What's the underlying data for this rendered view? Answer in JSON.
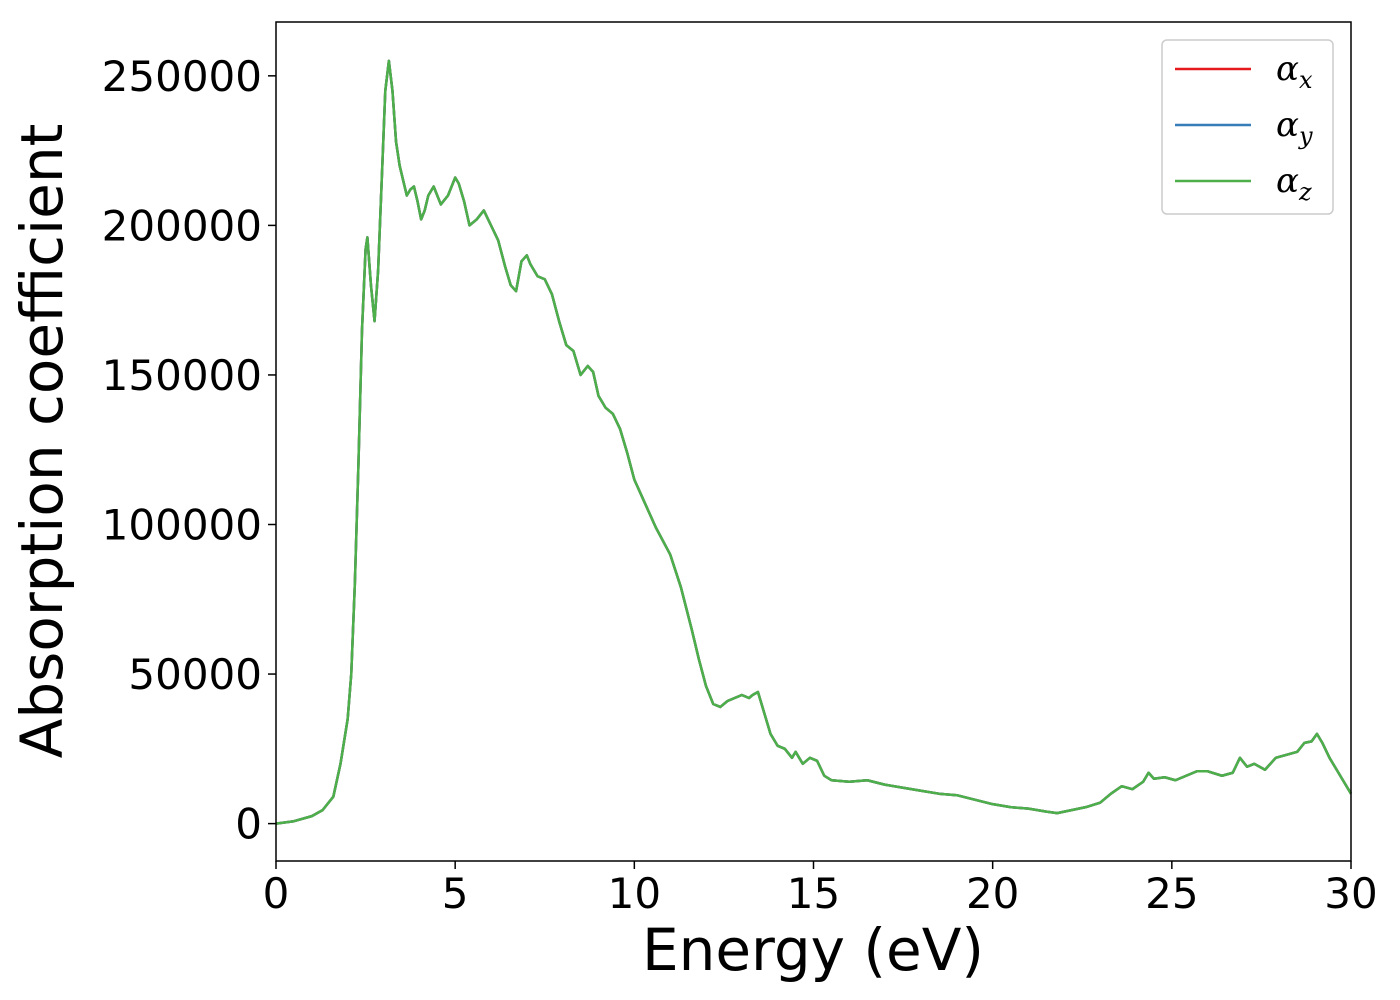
{
  "chart_data": {
    "type": "line",
    "title": "",
    "xlabel": "Energy (eV)",
    "ylabel": "Absorption coefficient",
    "xlim": [
      0,
      30
    ],
    "ylim": [
      -12500,
      268000
    ],
    "xticks": [
      0,
      5,
      10,
      15,
      20,
      25,
      30
    ],
    "yticks": [
      0,
      50000,
      100000,
      150000,
      200000,
      250000
    ],
    "xtick_labels": [
      "0",
      "5",
      "10",
      "15",
      "20",
      "25",
      "30"
    ],
    "ytick_labels": [
      "0",
      "50000",
      "100000",
      "150000",
      "200000",
      "250000"
    ],
    "grid": false,
    "legend": {
      "placement": "top-right",
      "entries": [
        {
          "symbol": "α",
          "subscript": "x"
        },
        {
          "symbol": "α",
          "subscript": "y"
        },
        {
          "symbol": "α",
          "subscript": "z"
        }
      ]
    },
    "colors": [
      "#e41a1c",
      "#377eb8",
      "#4daf4a"
    ],
    "x": [
      0,
      0.5,
      1.0,
      1.3,
      1.6,
      1.8,
      2.0,
      2.1,
      2.2,
      2.3,
      2.4,
      2.5,
      2.55,
      2.65,
      2.75,
      2.85,
      2.95,
      3.05,
      3.15,
      3.25,
      3.35,
      3.45,
      3.55,
      3.65,
      3.75,
      3.85,
      3.95,
      4.05,
      4.15,
      4.25,
      4.4,
      4.6,
      4.8,
      5.0,
      5.1,
      5.25,
      5.4,
      5.6,
      5.8,
      6.0,
      6.2,
      6.4,
      6.55,
      6.7,
      6.85,
      7.0,
      7.1,
      7.3,
      7.5,
      7.7,
      7.9,
      8.1,
      8.3,
      8.5,
      8.7,
      8.85,
      9.0,
      9.2,
      9.4,
      9.6,
      9.8,
      10.0,
      10.3,
      10.6,
      11.0,
      11.3,
      11.6,
      11.8,
      12.0,
      12.2,
      12.4,
      12.6,
      12.8,
      13.0,
      13.2,
      13.3,
      13.45,
      13.6,
      13.8,
      14.0,
      14.2,
      14.4,
      14.5,
      14.7,
      14.9,
      15.1,
      15.3,
      15.5,
      16.0,
      16.5,
      17.0,
      17.5,
      18.0,
      18.5,
      19.0,
      19.5,
      20.0,
      20.5,
      21.0,
      21.5,
      21.8,
      22.2,
      22.6,
      23.0,
      23.3,
      23.6,
      23.9,
      24.2,
      24.35,
      24.5,
      24.8,
      25.1,
      25.4,
      25.7,
      26.0,
      26.4,
      26.7,
      26.9,
      27.1,
      27.3,
      27.6,
      27.9,
      28.2,
      28.5,
      28.7,
      28.9,
      29.05,
      29.2,
      29.4,
      29.6,
      29.8,
      30.0
    ],
    "series": [
      {
        "values": [
          0,
          800,
          2500,
          4500,
          9000,
          20000,
          35000,
          50000,
          80000,
          120000,
          165000,
          192000,
          196000,
          180000,
          168000,
          185000,
          215000,
          245000,
          255000,
          245000,
          228000,
          220000,
          215000,
          210000,
          212000,
          213000,
          208000,
          202000,
          205000,
          210000,
          213000,
          207000,
          210000,
          216000,
          214000,
          208000,
          200000,
          202000,
          205000,
          200000,
          195000,
          186000,
          180000,
          178000,
          188000,
          190000,
          187000,
          183000,
          182000,
          177000,
          168000,
          160000,
          158000,
          150000,
          153000,
          151000,
          143000,
          139000,
          137000,
          132000,
          124000,
          115000,
          107000,
          99000,
          90000,
          79000,
          65000,
          55000,
          46000,
          40000,
          39000,
          41000,
          42000,
          43000,
          42000,
          43000,
          44000,
          38000,
          30000,
          26000,
          25000,
          22000,
          24000,
          20000,
          22000,
          21000,
          16000,
          14500,
          14000,
          14500,
          13000,
          12000,
          11000,
          10000,
          9500,
          8000,
          6500,
          5500,
          5000,
          4000,
          3500,
          4500,
          5500,
          7000,
          10000,
          12500,
          11500,
          14000,
          17000,
          15000,
          15500,
          14500,
          16000,
          17500,
          17500,
          16000,
          17000,
          22000,
          19000,
          20000,
          18000,
          22000,
          23000,
          24000,
          27000,
          27500,
          30000,
          27000,
          22000,
          18000,
          14000,
          10000
        ]
      },
      {
        "values": [
          0,
          800,
          2500,
          4500,
          9000,
          20000,
          35000,
          50000,
          80000,
          120000,
          165000,
          192000,
          196000,
          180000,
          168000,
          185000,
          215000,
          245000,
          255000,
          245000,
          228000,
          220000,
          215000,
          210000,
          212000,
          213000,
          208000,
          202000,
          205000,
          210000,
          213000,
          207000,
          210000,
          216000,
          214000,
          208000,
          200000,
          202000,
          205000,
          200000,
          195000,
          186000,
          180000,
          178000,
          188000,
          190000,
          187000,
          183000,
          182000,
          177000,
          168000,
          160000,
          158000,
          150000,
          153000,
          151000,
          143000,
          139000,
          137000,
          132000,
          124000,
          115000,
          107000,
          99000,
          90000,
          79000,
          65000,
          55000,
          46000,
          40000,
          39000,
          41000,
          42000,
          43000,
          42000,
          43000,
          44000,
          38000,
          30000,
          26000,
          25000,
          22000,
          24000,
          20000,
          22000,
          21000,
          16000,
          14500,
          14000,
          14500,
          13000,
          12000,
          11000,
          10000,
          9500,
          8000,
          6500,
          5500,
          5000,
          4000,
          3500,
          4500,
          5500,
          7000,
          10000,
          12500,
          11500,
          14000,
          17000,
          15000,
          15500,
          14500,
          16000,
          17500,
          17500,
          16000,
          17000,
          22000,
          19000,
          20000,
          18000,
          22000,
          23000,
          24000,
          27000,
          27500,
          30000,
          27000,
          22000,
          18000,
          14000,
          10000
        ]
      },
      {
        "values": [
          0,
          800,
          2500,
          4500,
          9000,
          20000,
          35000,
          50000,
          80000,
          120000,
          165000,
          192000,
          196000,
          180000,
          168000,
          185000,
          215000,
          245000,
          255000,
          245000,
          228000,
          220000,
          215000,
          210000,
          212000,
          213000,
          208000,
          202000,
          205000,
          210000,
          213000,
          207000,
          210000,
          216000,
          214000,
          208000,
          200000,
          202000,
          205000,
          200000,
          195000,
          186000,
          180000,
          178000,
          188000,
          190000,
          187000,
          183000,
          182000,
          177000,
          168000,
          160000,
          158000,
          150000,
          153000,
          151000,
          143000,
          139000,
          137000,
          132000,
          124000,
          115000,
          107000,
          99000,
          90000,
          79000,
          65000,
          55000,
          46000,
          40000,
          39000,
          41000,
          42000,
          43000,
          42000,
          43000,
          44000,
          38000,
          30000,
          26000,
          25000,
          22000,
          24000,
          20000,
          22000,
          21000,
          16000,
          14500,
          14000,
          14500,
          13000,
          12000,
          11000,
          10000,
          9500,
          8000,
          6500,
          5500,
          5000,
          4000,
          3500,
          4500,
          5500,
          7000,
          10000,
          12500,
          11500,
          14000,
          17000,
          15000,
          15500,
          14500,
          16000,
          17500,
          17500,
          16000,
          17000,
          22000,
          19000,
          20000,
          18000,
          22000,
          23000,
          24000,
          27000,
          27500,
          30000,
          27000,
          22000,
          18000,
          14000,
          10000
        ]
      }
    ]
  }
}
